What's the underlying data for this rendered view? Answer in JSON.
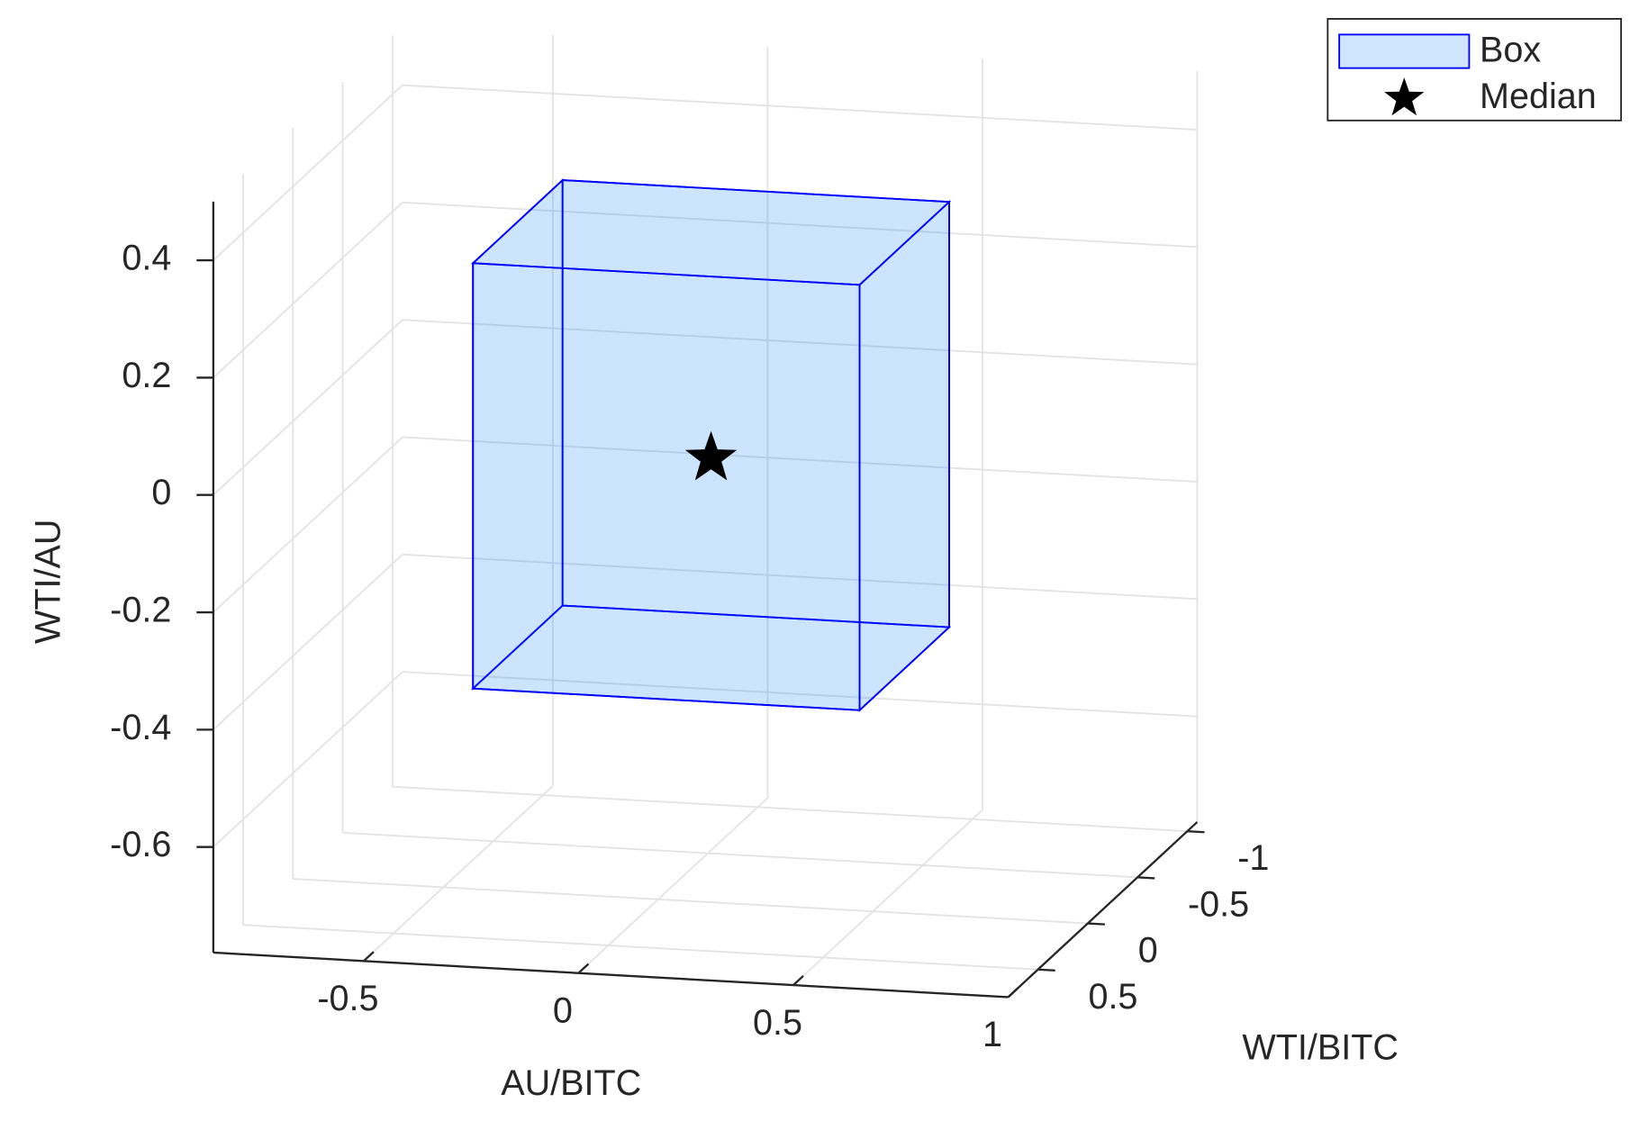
{
  "chart_data": {
    "type": "box3d",
    "xlabel": "AU/BITC",
    "ylabel": "WTI/BITC",
    "zlabel": "WTI/AU",
    "xlim": [
      -0.85,
      1
    ],
    "ylim": [
      -1.1,
      0.8
    ],
    "zlim": [
      -0.78,
      0.5
    ],
    "xticks": [
      -0.5,
      0,
      0.5,
      1
    ],
    "yticks": [
      -1,
      -0.5,
      0,
      0.5
    ],
    "zticks": [
      -0.6,
      -0.4,
      -0.2,
      0,
      0.2,
      0.4
    ],
    "grid": true,
    "legend": "northeast",
    "box": {
      "name": "Box",
      "color": "#0000ff",
      "fill": "#0072ff",
      "x": [
        -0.35,
        0.55
      ],
      "y": [
        -0.55,
        0.35
      ],
      "z": [
        -0.38,
        0.345
      ]
    },
    "median": {
      "name": "Median",
      "color": "#000000",
      "x": 0.1,
      "y": -0.1,
      "z": -0.04
    }
  }
}
